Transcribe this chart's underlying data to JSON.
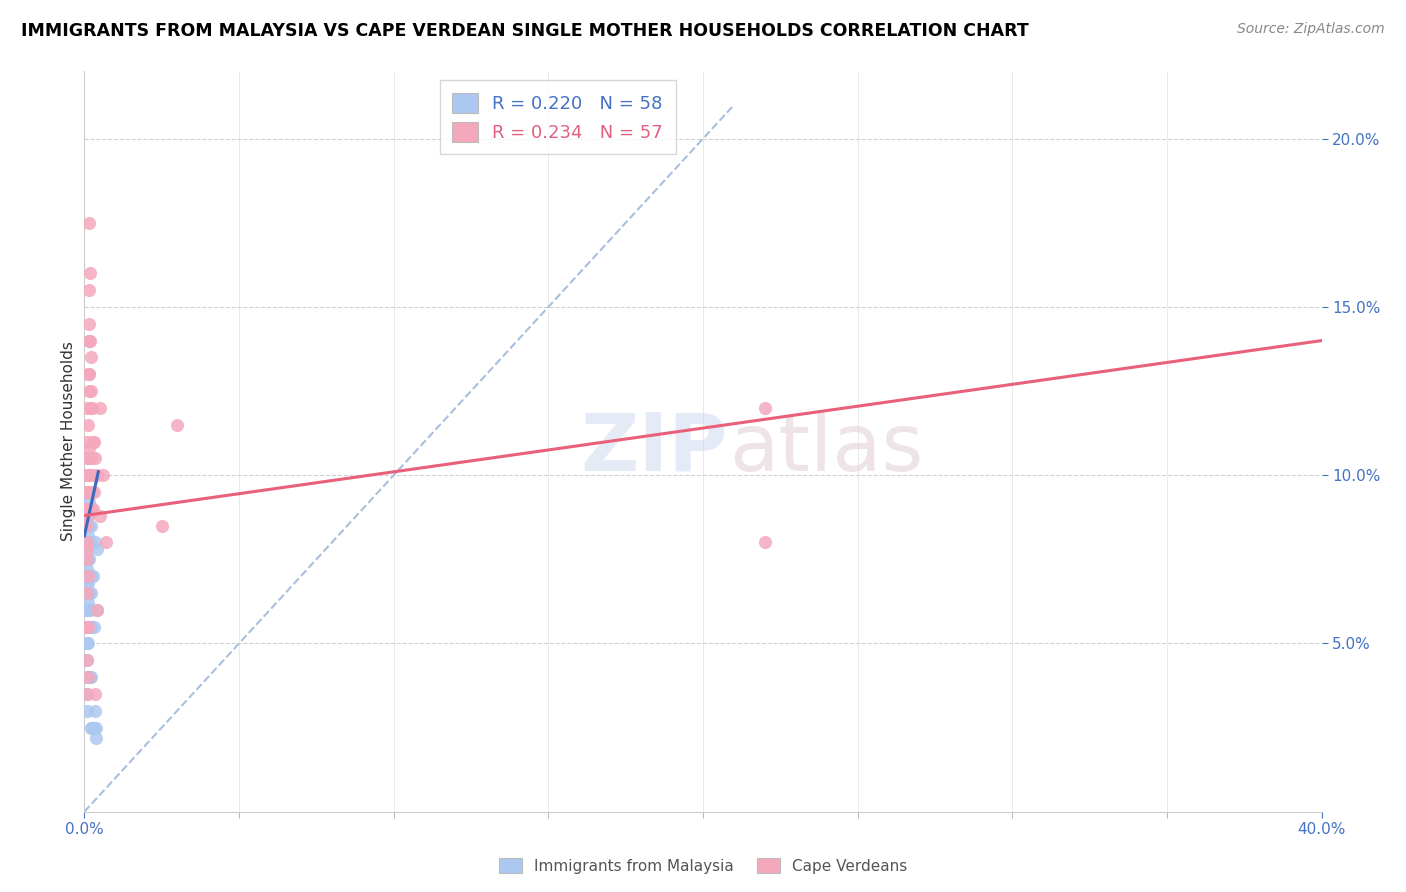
{
  "title": "IMMIGRANTS FROM MALAYSIA VS CAPE VERDEAN SINGLE MOTHER HOUSEHOLDS CORRELATION CHART",
  "source": "Source: ZipAtlas.com",
  "ylabel": "Single Mother Households",
  "blue_color": "#adc8f0",
  "pink_color": "#f5a8bc",
  "blue_line_color": "#3a6abf",
  "pink_line_color": "#e8607a",
  "diagonal_color": "#aabfdd",
  "R_malaysia": 0.22,
  "N_malaysia": 58,
  "R_capeverde": 0.234,
  "N_capeverde": 57,
  "xlim": [
    0.0,
    0.4
  ],
  "ylim": [
    0.0,
    0.22
  ],
  "yticks": [
    0.05,
    0.1,
    0.15,
    0.2
  ],
  "xticks": [
    0.0,
    0.4
  ],
  "malaysia_pts": [
    [
      0.0005,
      0.075
    ],
    [
      0.0006,
      0.068
    ],
    [
      0.0007,
      0.06
    ],
    [
      0.0007,
      0.055
    ],
    [
      0.0008,
      0.072
    ],
    [
      0.0008,
      0.065
    ],
    [
      0.0009,
      0.08
    ],
    [
      0.0009,
      0.07
    ],
    [
      0.001,
      0.09
    ],
    [
      0.001,
      0.085
    ],
    [
      0.001,
      0.078
    ],
    [
      0.001,
      0.07
    ],
    [
      0.001,
      0.065
    ],
    [
      0.001,
      0.06
    ],
    [
      0.001,
      0.055
    ],
    [
      0.001,
      0.05
    ],
    [
      0.001,
      0.045
    ],
    [
      0.001,
      0.04
    ],
    [
      0.001,
      0.035
    ],
    [
      0.001,
      0.03
    ],
    [
      0.0012,
      0.095
    ],
    [
      0.0012,
      0.088
    ],
    [
      0.0012,
      0.082
    ],
    [
      0.0012,
      0.075
    ],
    [
      0.0012,
      0.068
    ],
    [
      0.0012,
      0.062
    ],
    [
      0.0012,
      0.05
    ],
    [
      0.0012,
      0.04
    ],
    [
      0.0014,
      0.1
    ],
    [
      0.0014,
      0.092
    ],
    [
      0.0014,
      0.085
    ],
    [
      0.0014,
      0.065
    ],
    [
      0.0015,
      0.14
    ],
    [
      0.0015,
      0.13
    ],
    [
      0.0016,
      0.105
    ],
    [
      0.0016,
      0.09
    ],
    [
      0.0016,
      0.075
    ],
    [
      0.0016,
      0.055
    ],
    [
      0.0018,
      0.08
    ],
    [
      0.0018,
      0.06
    ],
    [
      0.0018,
      0.04
    ],
    [
      0.002,
      0.07
    ],
    [
      0.002,
      0.055
    ],
    [
      0.002,
      0.04
    ],
    [
      0.002,
      0.025
    ],
    [
      0.0022,
      0.085
    ],
    [
      0.0022,
      0.065
    ],
    [
      0.0025,
      0.095
    ],
    [
      0.0025,
      0.025
    ],
    [
      0.0028,
      0.07
    ],
    [
      0.003,
      0.055
    ],
    [
      0.003,
      0.025
    ],
    [
      0.0035,
      0.08
    ],
    [
      0.0035,
      0.03
    ],
    [
      0.0038,
      0.025
    ],
    [
      0.0038,
      0.022
    ],
    [
      0.0042,
      0.078
    ],
    [
      0.0042,
      0.06
    ]
  ],
  "capeverde_pts": [
    [
      0.0005,
      0.09
    ],
    [
      0.0006,
      0.085
    ],
    [
      0.0007,
      0.1
    ],
    [
      0.0007,
      0.08
    ],
    [
      0.0008,
      0.095
    ],
    [
      0.0008,
      0.075
    ],
    [
      0.0009,
      0.11
    ],
    [
      0.0009,
      0.095
    ],
    [
      0.001,
      0.12
    ],
    [
      0.001,
      0.105
    ],
    [
      0.001,
      0.09
    ],
    [
      0.001,
      0.078
    ],
    [
      0.001,
      0.065
    ],
    [
      0.001,
      0.055
    ],
    [
      0.001,
      0.045
    ],
    [
      0.001,
      0.035
    ],
    [
      0.0012,
      0.13
    ],
    [
      0.0012,
      0.115
    ],
    [
      0.0012,
      0.1
    ],
    [
      0.0012,
      0.088
    ],
    [
      0.0012,
      0.07
    ],
    [
      0.0012,
      0.055
    ],
    [
      0.0012,
      0.04
    ],
    [
      0.0014,
      0.14
    ],
    [
      0.0014,
      0.125
    ],
    [
      0.0014,
      0.108
    ],
    [
      0.0015,
      0.155
    ],
    [
      0.0015,
      0.175
    ],
    [
      0.0016,
      0.145
    ],
    [
      0.0016,
      0.13
    ],
    [
      0.0016,
      0.095
    ],
    [
      0.0018,
      0.16
    ],
    [
      0.0018,
      0.14
    ],
    [
      0.002,
      0.135
    ],
    [
      0.002,
      0.12
    ],
    [
      0.002,
      0.105
    ],
    [
      0.0022,
      0.125
    ],
    [
      0.0022,
      0.105
    ],
    [
      0.0022,
      0.09
    ],
    [
      0.0025,
      0.12
    ],
    [
      0.0025,
      0.1
    ],
    [
      0.0028,
      0.11
    ],
    [
      0.0028,
      0.09
    ],
    [
      0.003,
      0.11
    ],
    [
      0.003,
      0.095
    ],
    [
      0.0035,
      0.105
    ],
    [
      0.0035,
      0.035
    ],
    [
      0.004,
      0.1
    ],
    [
      0.004,
      0.06
    ],
    [
      0.005,
      0.12
    ],
    [
      0.005,
      0.088
    ],
    [
      0.006,
      0.1
    ],
    [
      0.007,
      0.08
    ],
    [
      0.025,
      0.085
    ],
    [
      0.03,
      0.115
    ],
    [
      0.22,
      0.12
    ],
    [
      0.22,
      0.08
    ]
  ],
  "blue_regline": [
    [
      0.0,
      0.082
    ],
    [
      0.0045,
      0.101
    ]
  ],
  "pink_regline": [
    [
      0.0,
      0.088
    ],
    [
      0.4,
      0.14
    ]
  ],
  "diag_line": [
    [
      0.0,
      0.0
    ],
    [
      0.21,
      0.21
    ]
  ]
}
